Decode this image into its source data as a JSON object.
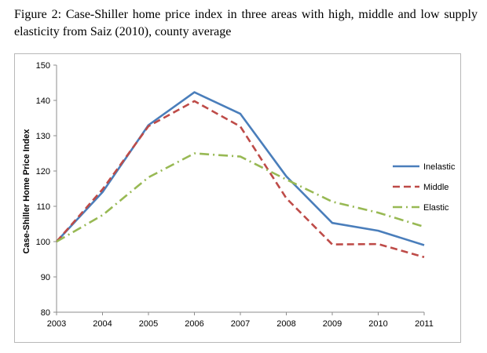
{
  "figure": {
    "caption": "Figure 2: Case-Shiller home price index in three areas with high, middle and low supply elasticity from Saiz (2010), county average"
  },
  "chart_data": {
    "type": "line",
    "ylabel": "Case-Shiller Home Price Index",
    "xlabel": "",
    "ylim": [
      80,
      150
    ],
    "yticks": [
      80,
      90,
      100,
      110,
      120,
      130,
      140,
      150
    ],
    "x": [
      "2003",
      "2004",
      "2005",
      "2006",
      "2007",
      "2008",
      "2009",
      "2010",
      "2011"
    ],
    "grid": false,
    "legend_position": "right",
    "series": [
      {
        "name": "Inelastic",
        "color": "#4a7ebb",
        "dash": "solid",
        "values": [
          100,
          114,
          133,
          142.3,
          136.2,
          118.5,
          105.3,
          103.1,
          99
        ]
      },
      {
        "name": "Middle",
        "color": "#be4b48",
        "dash": "dashed",
        "values": [
          100,
          114.8,
          132.7,
          139.8,
          132.6,
          112.3,
          99.2,
          99.3,
          95.6
        ]
      },
      {
        "name": "Elastic",
        "color": "#98b954",
        "dash": "dashdot",
        "values": [
          100,
          107.5,
          118.2,
          125,
          124.1,
          117.6,
          111.3,
          108.2,
          104.2
        ]
      }
    ]
  }
}
